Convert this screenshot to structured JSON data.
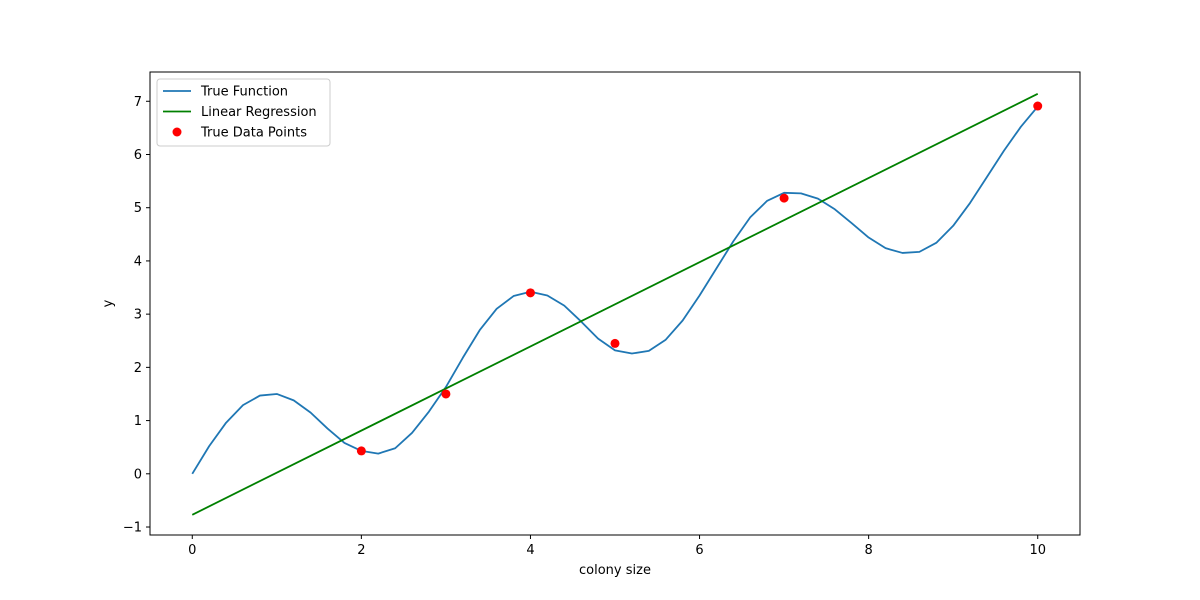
{
  "chart_data": {
    "type": "line",
    "title": "",
    "xlabel": "colony size",
    "ylabel": "y",
    "xlim": [
      -0.5,
      10.5
    ],
    "ylim": [
      -1.15,
      7.55
    ],
    "xticks": [
      0,
      2,
      4,
      6,
      8,
      10
    ],
    "xtick_labels": [
      "0",
      "2",
      "4",
      "6",
      "8",
      "10"
    ],
    "yticks": [
      -1,
      0,
      1,
      2,
      3,
      4,
      5,
      6,
      7
    ],
    "ytick_labels": [
      "−1",
      "0",
      "1",
      "2",
      "3",
      "4",
      "5",
      "6",
      "7"
    ],
    "grid": false,
    "legend_position": "top-left",
    "series": [
      {
        "name": "True Function",
        "kind": "line",
        "color": "#1f77b4",
        "x": [
          0,
          0.2,
          0.4,
          0.6,
          0.8,
          1.0,
          1.2,
          1.4,
          1.6,
          1.8,
          2.0,
          2.2,
          2.4,
          2.6,
          2.8,
          3.0,
          3.2,
          3.4,
          3.6,
          3.8,
          4.0,
          4.2,
          4.4,
          4.6,
          4.8,
          5.0,
          5.2,
          5.4,
          5.6,
          5.8,
          6.0,
          6.2,
          6.4,
          6.6,
          6.8,
          7.0,
          7.2,
          7.4,
          7.6,
          7.8,
          8.0,
          8.2,
          8.4,
          8.6,
          8.8,
          9.0,
          9.2,
          9.4,
          9.6,
          9.8,
          10.0
        ],
        "y": [
          0.0,
          0.52,
          0.96,
          1.29,
          1.47,
          1.5,
          1.38,
          1.15,
          0.85,
          0.58,
          0.43,
          0.38,
          0.48,
          0.77,
          1.17,
          1.63,
          2.18,
          2.7,
          3.1,
          3.34,
          3.42,
          3.35,
          3.16,
          2.86,
          2.54,
          2.32,
          2.26,
          2.31,
          2.52,
          2.88,
          3.35,
          3.86,
          4.37,
          4.82,
          5.13,
          5.28,
          5.27,
          5.17,
          4.97,
          4.71,
          4.44,
          4.24,
          4.15,
          4.17,
          4.34,
          4.66,
          5.09,
          5.58,
          6.07,
          6.52,
          6.9
        ]
      },
      {
        "name": "Linear Regression",
        "kind": "line",
        "color": "#008000",
        "x": [
          0,
          10
        ],
        "y": [
          -0.77,
          7.14
        ]
      },
      {
        "name": "True Data Points",
        "kind": "scatter",
        "color": "#ff0000",
        "x": [
          2,
          3,
          4,
          5,
          7,
          10
        ],
        "y": [
          0.43,
          1.5,
          3.4,
          2.45,
          5.18,
          6.91
        ]
      }
    ]
  }
}
